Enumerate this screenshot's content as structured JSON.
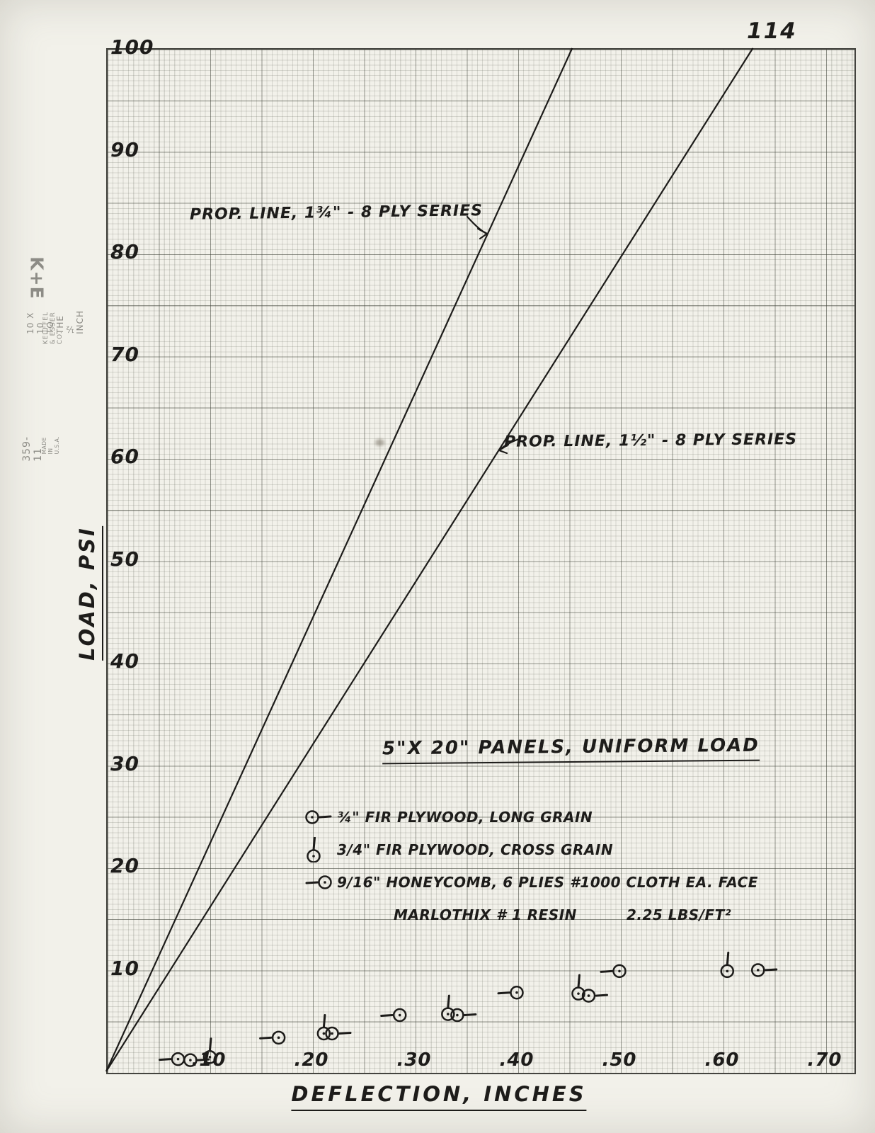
{
  "page": {
    "page_number": "114",
    "margin": {
      "logo": "K+E",
      "brand": "KEUFFEL & ESSER CO.",
      "grid_spec": "10 X 10 TO THE ½ INCH",
      "stock_number": "359-11",
      "made_in": "MADE IN U.S.A."
    }
  },
  "chart_data": {
    "type": "scatter",
    "title": "5\"X 20\" PANELS, UNIFORM LOAD",
    "xlabel": "DEFLECTION, INCHES",
    "ylabel": "LOAD, PSI",
    "xlim": [
      0,
      0.73
    ],
    "ylim": [
      0,
      100
    ],
    "grid": "on, 10x10 per half inch graph paper",
    "legend_position": "lower center",
    "x_ticks": [
      {
        "value": 0.1,
        "label": ".10"
      },
      {
        "value": 0.2,
        "label": ".20"
      },
      {
        "value": 0.3,
        "label": ".30"
      },
      {
        "value": 0.4,
        "label": ".40"
      },
      {
        "value": 0.5,
        "label": ".50"
      },
      {
        "value": 0.6,
        "label": ".60"
      },
      {
        "value": 0.7,
        "label": ".70"
      }
    ],
    "y_ticks": [
      {
        "value": 100,
        "label": "100"
      },
      {
        "value": 90,
        "label": "90"
      },
      {
        "value": 80,
        "label": "80"
      },
      {
        "value": 70,
        "label": "70"
      },
      {
        "value": 60,
        "label": "60"
      },
      {
        "value": 50,
        "label": "50"
      },
      {
        "value": 40,
        "label": "40"
      },
      {
        "value": 30,
        "label": "30"
      },
      {
        "value": 20,
        "label": "20"
      },
      {
        "value": 10,
        "label": "10"
      }
    ],
    "prop_lines": [
      {
        "label": "PROP. LINE, 1¾\" - 8 PLY SERIES",
        "from": [
          0,
          0
        ],
        "to": [
          0.454,
          100
        ]
      },
      {
        "label": "PROP. LINE, 1½\" - 8 PLY SERIES",
        "from": [
          0,
          0
        ],
        "to": [
          0.63,
          100
        ]
      }
    ],
    "series": [
      {
        "name": "¾\" FIR PLYWOOD, LONG GRAIN",
        "marker": "circle-dash-right",
        "points": [
          [
            0.082,
            1.1
          ],
          [
            0.22,
            3.7
          ],
          [
            0.342,
            5.5
          ],
          [
            0.47,
            7.4
          ],
          [
            0.635,
            9.9
          ]
        ]
      },
      {
        "name": "3/4\" FIR PLYWOOD, CROSS GRAIN",
        "marker": "circle-tick-top",
        "points": [
          [
            0.101,
            1.4
          ],
          [
            0.212,
            3.7
          ],
          [
            0.333,
            5.6
          ],
          [
            0.46,
            7.6
          ],
          [
            0.605,
            9.8
          ]
        ]
      },
      {
        "name": "9/16\" HONEYCOMB, 6 PLIES #1000 CLOTH EA. FACE",
        "marker": "circle-dash-left",
        "points": [
          [
            0.07,
            1.2
          ],
          [
            0.168,
            3.3
          ],
          [
            0.286,
            5.5
          ],
          [
            0.4,
            7.7
          ],
          [
            0.5,
            9.8
          ]
        ],
        "note_line2": "MARLOTHIX # 1 RESIN",
        "note_value": "2.25 LBS/FT²"
      }
    ]
  }
}
